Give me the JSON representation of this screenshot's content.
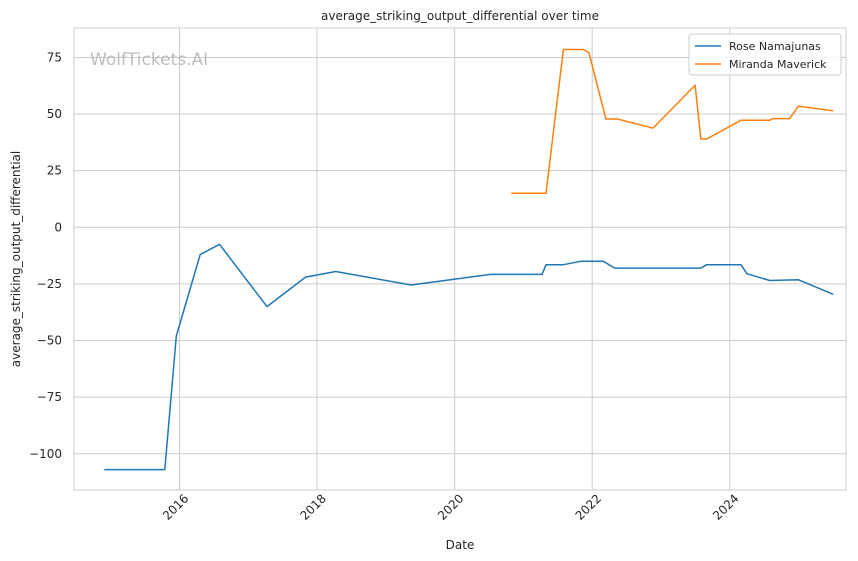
{
  "chart_data": {
    "type": "line",
    "title": "average_striking_output_differential over time",
    "xlabel": "Date",
    "ylabel": "average_striking_output_differential",
    "watermark": "WolfTickets.AI",
    "x_ticks": [
      "2016",
      "2018",
      "2020",
      "2022",
      "2024"
    ],
    "y_ticks": [
      "75",
      "50",
      "25",
      "0",
      "−25",
      "−50",
      "−75",
      "−100"
    ],
    "y_tick_values": [
      75,
      50,
      25,
      0,
      -25,
      -50,
      -75,
      -100
    ],
    "x_tick_values": [
      "2016-01-01",
      "2018-01-01",
      "2020-01-01",
      "2022-01-01",
      "2024-01-01"
    ],
    "xlim": [
      "2014-06-20",
      "2025-09-10"
    ],
    "ylim": [
      -116,
      88
    ],
    "grid": true,
    "legend_position": "top-right",
    "series": [
      {
        "name": "Rose Namajunas",
        "color": "#1f77b4",
        "points": [
          [
            "2014-12-01",
            -107
          ],
          [
            "2015-10-15",
            -107
          ],
          [
            "2015-12-15",
            -48
          ],
          [
            "2016-04-20",
            -12
          ],
          [
            "2016-08-01",
            -7.5
          ],
          [
            "2017-04-10",
            -35
          ],
          [
            "2017-11-01",
            -22
          ],
          [
            "2018-04-10",
            -19.5
          ],
          [
            "2019-05-15",
            -25.5
          ],
          [
            "2020-07-10",
            -20.8
          ],
          [
            "2021-04-10",
            -20.8
          ],
          [
            "2021-05-01",
            -16.5
          ],
          [
            "2021-08-01",
            -16.5
          ],
          [
            "2021-11-01",
            -15
          ],
          [
            "2022-03-01",
            -15
          ],
          [
            "2022-05-01",
            -18
          ],
          [
            "2023-08-01",
            -18
          ],
          [
            "2023-09-01",
            -16.5
          ],
          [
            "2024-03-01",
            -16.5
          ],
          [
            "2024-04-01",
            -20.5
          ],
          [
            "2024-08-01",
            -23.5
          ],
          [
            "2025-01-01",
            -23.2
          ],
          [
            "2025-07-01",
            -29.5
          ]
        ]
      },
      {
        "name": "Miranda Maverick",
        "color": "#ff7f0e",
        "points": [
          [
            "2020-11-01",
            15
          ],
          [
            "2021-05-01",
            15
          ],
          [
            "2021-08-01",
            78.5
          ],
          [
            "2021-11-15",
            78.5
          ],
          [
            "2021-12-15",
            77
          ],
          [
            "2022-03-15",
            47.8
          ],
          [
            "2022-05-15",
            47.8
          ],
          [
            "2022-11-20",
            43.8
          ],
          [
            "2023-07-01",
            62.8
          ],
          [
            "2023-08-01",
            39
          ],
          [
            "2023-09-01",
            39
          ],
          [
            "2024-03-01",
            47.3
          ],
          [
            "2024-08-01",
            47.3
          ],
          [
            "2024-08-15",
            48
          ],
          [
            "2024-11-15",
            48
          ],
          [
            "2025-01-01",
            53.5
          ],
          [
            "2025-07-01",
            51.5
          ]
        ]
      }
    ]
  }
}
